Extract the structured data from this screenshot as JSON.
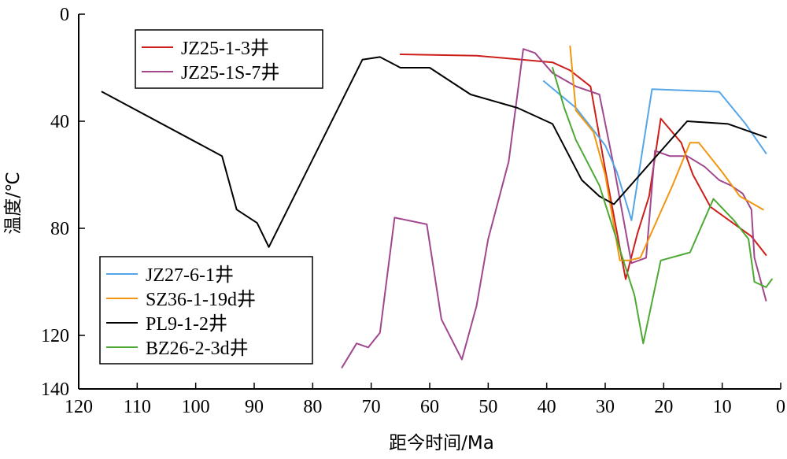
{
  "chart_data": {
    "type": "line",
    "title": "",
    "xlabel": "距今时间/Ma",
    "ylabel": "温度/℃",
    "xlim": [
      120,
      0
    ],
    "ylim": [
      0,
      140
    ],
    "x_reversed": true,
    "y_reversed": true,
    "x_ticks": [
      120,
      110,
      100,
      90,
      80,
      70,
      60,
      50,
      40,
      30,
      20,
      10,
      0
    ],
    "y_ticks": [
      0,
      40,
      80,
      120,
      140
    ],
    "grid": false,
    "legends": [
      {
        "placement": "top-left",
        "entries": [
          "JZ25-1-3井",
          "JZ25-1S-7井"
        ]
      },
      {
        "placement": "bottom-left",
        "entries": [
          "JZ27-6-1井",
          "SZ36-1-19d井",
          "PL9-1-2井",
          "BZ26-2-3d井"
        ]
      }
    ],
    "series": [
      {
        "name": "JZ25-1-3井",
        "color": "#cc1f1a",
        "points": [
          [
            65,
            15
          ],
          [
            52,
            15.5
          ],
          [
            39,
            18
          ],
          [
            36,
            21
          ],
          [
            32.5,
            27
          ],
          [
            30,
            58
          ],
          [
            26.5,
            99
          ],
          [
            24.5,
            82
          ],
          [
            22.5,
            68
          ],
          [
            20.5,
            39
          ],
          [
            17,
            48
          ],
          [
            15,
            60
          ],
          [
            12,
            72
          ],
          [
            5,
            83
          ],
          [
            2.5,
            90
          ]
        ]
      },
      {
        "name": "JZ25-1S-7井",
        "color": "#a0478e",
        "points": [
          [
            75,
            132
          ],
          [
            72.5,
            123
          ],
          [
            70.5,
            124.5
          ],
          [
            68.5,
            119
          ],
          [
            66,
            76
          ],
          [
            60.5,
            78.5
          ],
          [
            58,
            114
          ],
          [
            54.5,
            129
          ],
          [
            52,
            109
          ],
          [
            50,
            84
          ],
          [
            46.5,
            55
          ],
          [
            44,
            13
          ],
          [
            42,
            14.5
          ],
          [
            39,
            22
          ],
          [
            35,
            27
          ],
          [
            31,
            30
          ],
          [
            28.5,
            57
          ],
          [
            25.5,
            93
          ],
          [
            23,
            91
          ],
          [
            21.5,
            51
          ],
          [
            19,
            53
          ],
          [
            16,
            53
          ],
          [
            13,
            57
          ],
          [
            10.5,
            62
          ],
          [
            8.5,
            64
          ],
          [
            6.5,
            67
          ],
          [
            5,
            73
          ],
          [
            4.5,
            91
          ],
          [
            2.5,
            107
          ]
        ]
      },
      {
        "name": "JZ27-6-1井",
        "color": "#55a6e8",
        "points": [
          [
            40.5,
            25
          ],
          [
            35,
            35
          ],
          [
            30,
            49
          ],
          [
            28,
            59
          ],
          [
            25.5,
            77
          ],
          [
            22,
            28
          ],
          [
            10.5,
            29
          ],
          [
            6,
            41
          ],
          [
            2.5,
            52
          ]
        ]
      },
      {
        "name": "SZ36-1-19d井",
        "color": "#f0960f",
        "points": [
          [
            36,
            12
          ],
          [
            35,
            36
          ],
          [
            32,
            44
          ],
          [
            30,
            60
          ],
          [
            27.5,
            92
          ],
          [
            26,
            92
          ],
          [
            24,
            91
          ],
          [
            18.5,
            64
          ],
          [
            15.5,
            48
          ],
          [
            14,
            48
          ],
          [
            10,
            59
          ],
          [
            7,
            68
          ],
          [
            3,
            73
          ]
        ]
      },
      {
        "name": "PL9-1-2井",
        "color": "#000000",
        "points": [
          [
            116,
            29
          ],
          [
            95.5,
            53
          ],
          [
            93,
            73
          ],
          [
            89.5,
            78
          ],
          [
            87.5,
            87
          ],
          [
            71.5,
            17
          ],
          [
            68.5,
            16
          ],
          [
            65,
            20
          ],
          [
            60,
            20
          ],
          [
            53,
            30
          ],
          [
            45,
            35
          ],
          [
            39,
            41
          ],
          [
            34,
            62
          ],
          [
            31,
            68
          ],
          [
            28.5,
            71
          ],
          [
            16,
            40
          ],
          [
            9,
            41
          ],
          [
            2.5,
            46
          ]
        ]
      },
      {
        "name": "BZ26-2-3d井",
        "color": "#4da934",
        "points": [
          [
            39,
            20
          ],
          [
            37,
            35
          ],
          [
            35,
            47
          ],
          [
            31,
            64
          ],
          [
            25,
            105
          ],
          [
            23.5,
            123
          ],
          [
            20.5,
            92
          ],
          [
            15.5,
            89
          ],
          [
            11.5,
            69
          ],
          [
            8,
            77
          ],
          [
            5.5,
            84
          ],
          [
            4.5,
            100
          ],
          [
            2.5,
            102
          ],
          [
            1.5,
            99
          ]
        ]
      }
    ]
  }
}
